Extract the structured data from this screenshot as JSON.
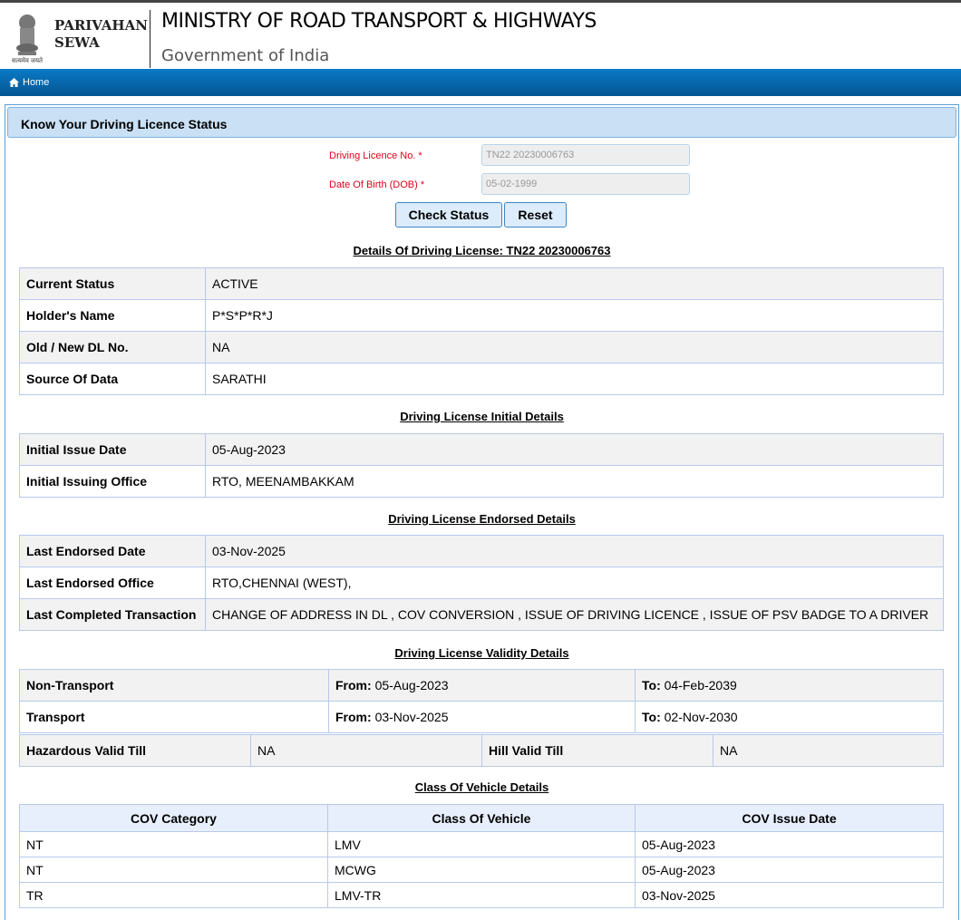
{
  "header": {
    "brand_line1": "PARIVAHAN",
    "brand_line2": "SEWA",
    "emblem_text": "सत्यमेव जयते",
    "ministry": "MINISTRY OF ROAD TRANSPORT & HIGHWAYS",
    "government": "Government of India"
  },
  "nav": {
    "home": "Home"
  },
  "panel": {
    "title": "Know Your Driving Licence Status"
  },
  "form": {
    "dl_label": "Driving Licence No. *",
    "dl_value": "TN22 20230006763",
    "dob_label": "Date Of Birth (DOB) *",
    "dob_value": "05-02-1999",
    "check_status": "Check Status",
    "reset": "Reset"
  },
  "details": {
    "title": "Details Of Driving License: TN22 20230006763",
    "rows": [
      [
        "Current Status",
        "ACTIVE"
      ],
      [
        "Holder's Name",
        "P*S*P*R*J"
      ],
      [
        "Old / New DL No.",
        "NA"
      ],
      [
        "Source Of Data",
        "SARATHI"
      ]
    ]
  },
  "initial": {
    "title": "Driving License Initial Details",
    "rows": [
      [
        "Initial Issue Date",
        "05-Aug-2023"
      ],
      [
        "Initial Issuing Office",
        "RTO, MEENAMBAKKAM"
      ]
    ]
  },
  "endorsed": {
    "title": "Driving License Endorsed Details",
    "rows": [
      [
        "Last Endorsed Date",
        "03-Nov-2025"
      ],
      [
        "Last Endorsed Office",
        "RTO,CHENNAI (WEST),"
      ],
      [
        "Last Completed Transaction",
        "CHANGE OF ADDRESS IN DL , COV CONVERSION , ISSUE OF DRIVING LICENCE , ISSUE OF PSV BADGE TO A DRIVER"
      ]
    ]
  },
  "validity": {
    "title": "Driving License Validity Details",
    "from_label": "From:",
    "to_label": "To:",
    "rows": [
      {
        "type": "Non-Transport",
        "from": "05-Aug-2023",
        "to": "04-Feb-2039"
      },
      {
        "type": "Transport",
        "from": "03-Nov-2025",
        "to": "02-Nov-2030"
      }
    ],
    "hazardous_label": "Hazardous Valid Till",
    "hazardous_value": "NA",
    "hill_label": "Hill Valid Till",
    "hill_value": "NA"
  },
  "cov": {
    "title": "Class Of Vehicle Details",
    "headers": [
      "COV Category",
      "Class Of Vehicle",
      "COV Issue Date"
    ],
    "rows": [
      [
        "NT",
        "LMV",
        "05-Aug-2023"
      ],
      [
        "NT",
        "MCWG",
        "05-Aug-2023"
      ],
      [
        "TR",
        "LMV-TR",
        "03-Nov-2025"
      ]
    ]
  }
}
